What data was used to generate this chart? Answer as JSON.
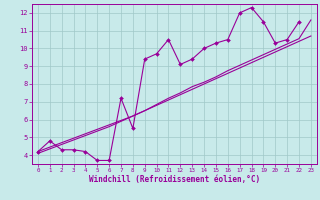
{
  "xlabel": "Windchill (Refroidissement éolien,°C)",
  "bg_color": "#c8eaea",
  "grid_color": "#a0c8c8",
  "line_color": "#990099",
  "x_data": [
    0,
    1,
    2,
    3,
    4,
    5,
    6,
    7,
    8,
    9,
    10,
    11,
    12,
    13,
    14,
    15,
    16,
    17,
    18,
    19,
    20,
    21,
    22,
    23
  ],
  "y_zigzag": [
    4.2,
    4.8,
    4.3,
    4.3,
    4.2,
    3.7,
    3.7,
    7.2,
    5.5,
    9.4,
    9.7,
    10.5,
    9.1,
    9.4,
    10.0,
    10.3,
    10.5,
    12.0,
    12.3,
    11.5,
    10.3,
    10.5,
    11.5,
    null
  ],
  "y_line1": [
    4.2,
    4.45,
    4.7,
    4.95,
    5.2,
    5.45,
    5.7,
    5.95,
    6.2,
    6.5,
    6.8,
    7.1,
    7.4,
    7.7,
    8.0,
    8.3,
    8.6,
    8.9,
    9.2,
    9.5,
    9.8,
    10.1,
    10.4,
    10.7
  ],
  "y_line2": [
    4.1,
    4.35,
    4.6,
    4.85,
    5.1,
    5.35,
    5.6,
    5.9,
    6.2,
    6.5,
    6.85,
    7.2,
    7.5,
    7.85,
    8.1,
    8.4,
    8.75,
    9.05,
    9.35,
    9.65,
    9.95,
    10.25,
    10.55,
    11.6
  ],
  "ylim": [
    3.5,
    12.5
  ],
  "xlim": [
    -0.5,
    23.5
  ],
  "yticks": [
    4,
    5,
    6,
    7,
    8,
    9,
    10,
    11,
    12
  ],
  "xticks": [
    0,
    1,
    2,
    3,
    4,
    5,
    6,
    7,
    8,
    9,
    10,
    11,
    12,
    13,
    14,
    15,
    16,
    17,
    18,
    19,
    20,
    21,
    22,
    23
  ]
}
